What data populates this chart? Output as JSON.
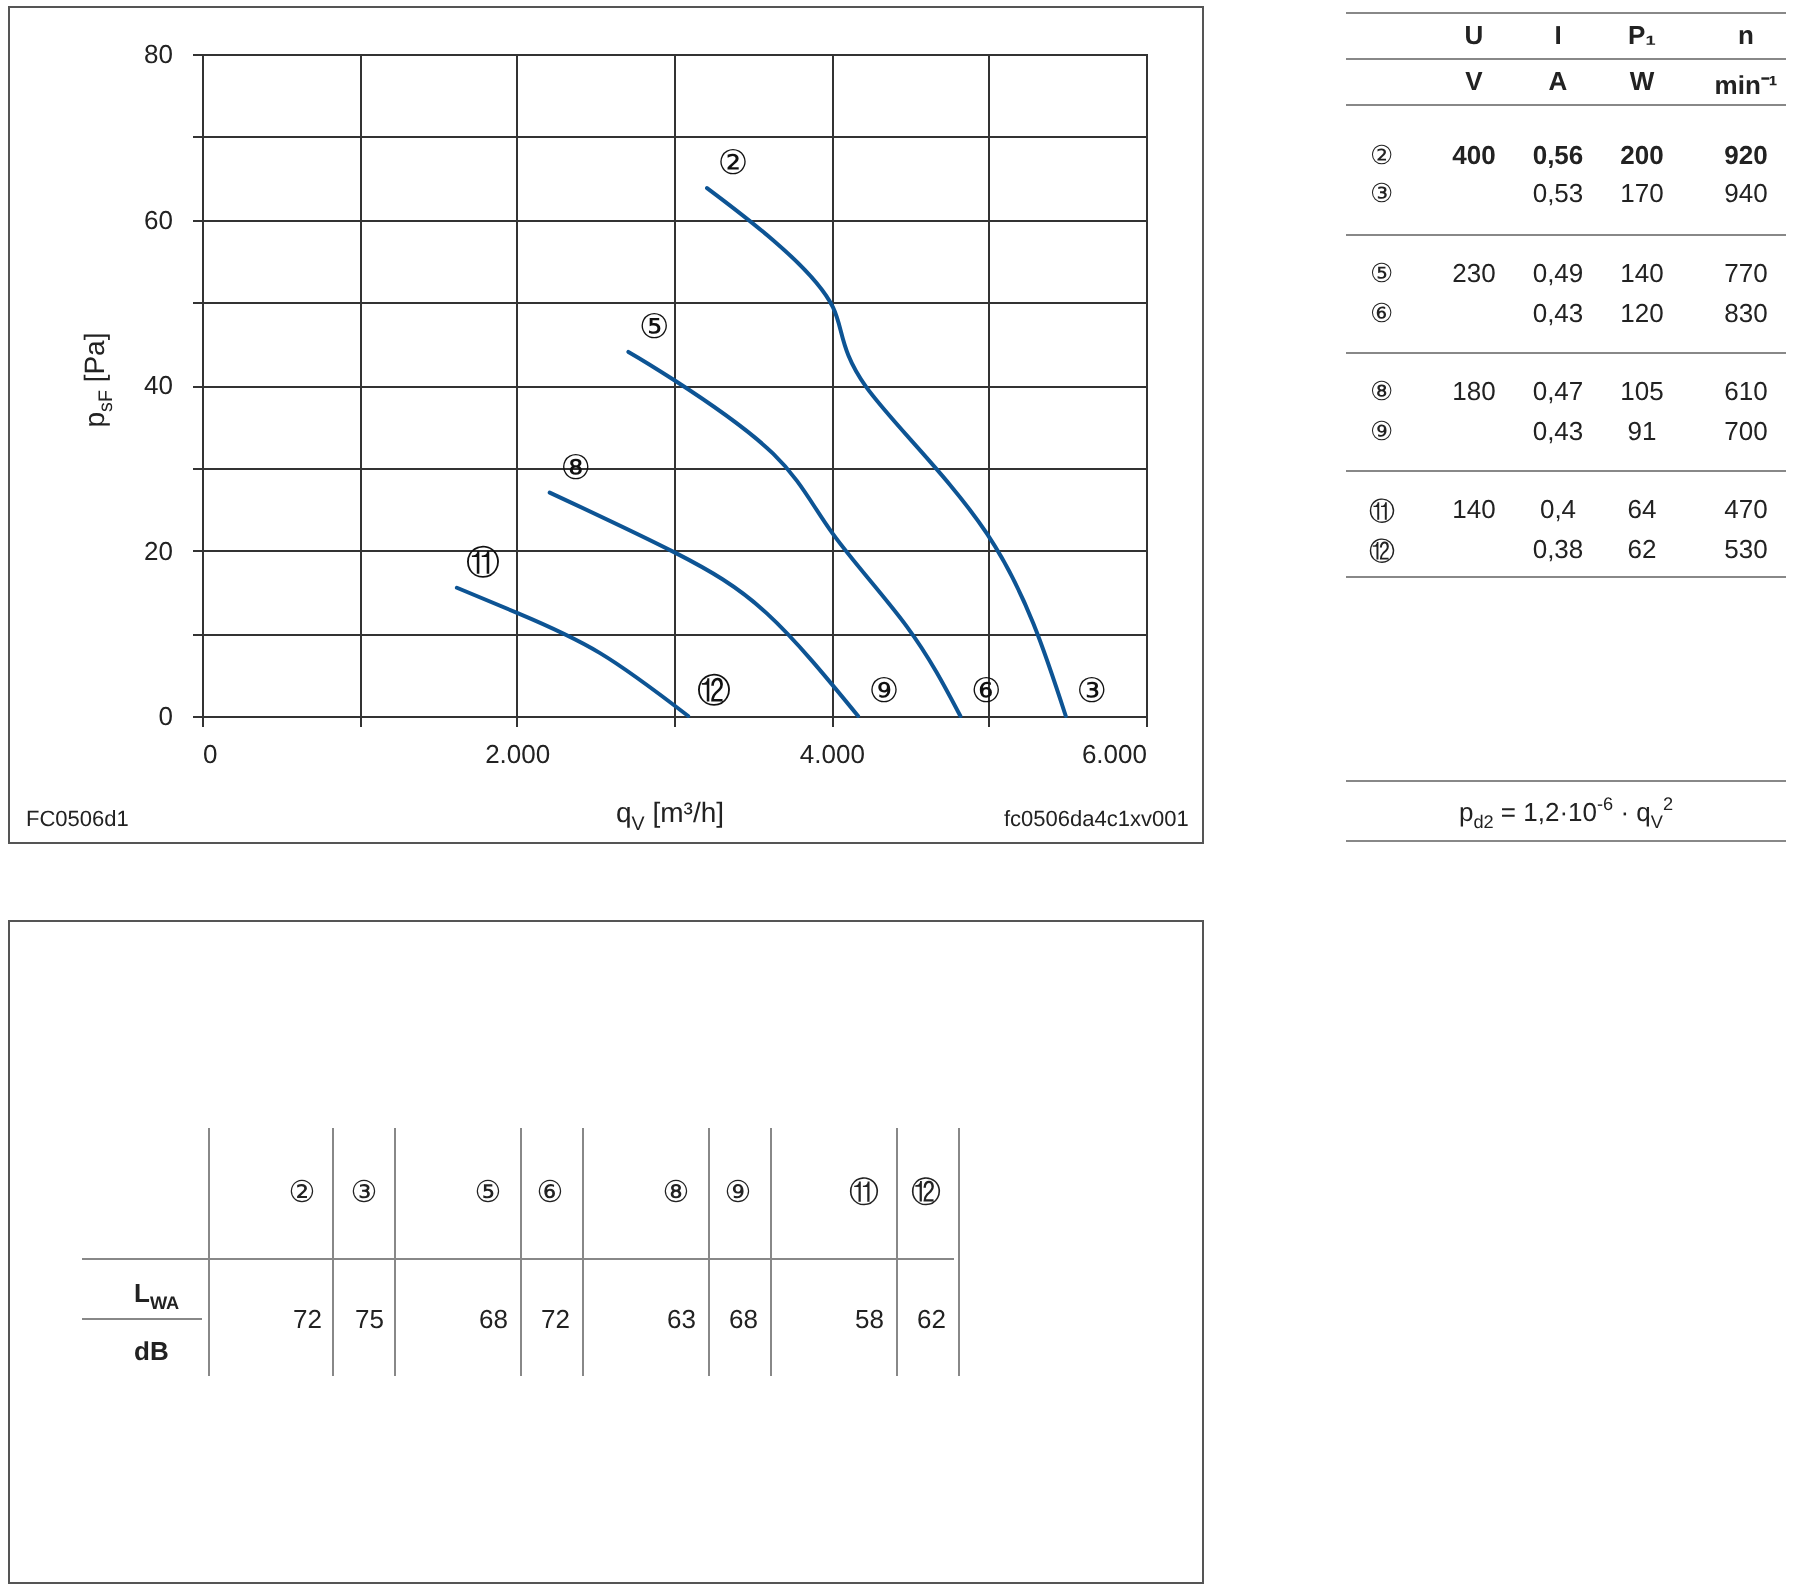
{
  "chart_data": [
    {
      "type": "line",
      "xlabel": "q$_{V}$ [m³/h]",
      "ylabel": "p$_{sF}$ [Pa]",
      "xlim": [
        0,
        6000
      ],
      "ylim": [
        0,
        80
      ],
      "xticks": [
        0,
        {
          "value": 1000,
          "label": null
        },
        {
          "value": 2000,
          "label": "2.000"
        },
        {
          "value": 3000,
          "label": null
        },
        {
          "value": 4000,
          "label": "4.000"
        },
        {
          "value": 5000,
          "label": null
        },
        {
          "value": 6000,
          "label": "6.000"
        }
      ],
      "yticks": [
        0,
        {
          "value": 10,
          "label": null
        },
        20,
        {
          "value": 30,
          "label": null
        },
        40,
        {
          "value": 50,
          "label": null
        },
        60,
        {
          "value": 70,
          "label": null
        },
        80
      ],
      "grid": true,
      "series": [
        {
          "color": "#0d5494",
          "x": [
            3210,
            3630,
            4010,
            4220,
            4990,
            5490
          ],
          "values": [
            63.8,
            57.5,
            49.4,
            39.8,
            22,
            0
          ]
        },
        {
          "color": "#0d5494",
          "x": [
            2710,
            3000,
            3630,
            4010,
            4480,
            4820
          ],
          "values": [
            44,
            40.6,
            31.7,
            22,
            10.8,
            0
          ]
        },
        {
          "color": "#0d5494",
          "x": [
            2210,
            3000,
            3590,
            4170
          ],
          "values": [
            27,
            19.8,
            12.4,
            0
          ]
        },
        {
          "color": "#0d5494",
          "x": [
            1620,
            2010,
            2530,
            3090
          ],
          "values": [
            15.5,
            12.4,
            7.6,
            0
          ]
        }
      ],
      "annotations": [
        {
          "text": "②",
          "x": 3210,
          "y": 63.8
        },
        {
          "text": "③",
          "x": 5490,
          "y": 0
        },
        {
          "text": "⑤",
          "x": 2710,
          "y": 44
        },
        {
          "text": "⑥",
          "x": 4820,
          "y": 0
        },
        {
          "text": "⑧",
          "x": 2210,
          "y": 27
        },
        {
          "text": "⑨",
          "x": 4170,
          "y": 0
        },
        {
          "text": "⑪",
          "x": 1620,
          "y": 15.5
        },
        {
          "text": "⑫",
          "x": 3090,
          "y": 0
        },
        "FC0506d1",
        "fc0506da4c1xv001"
      ]
    },
    {
      "type": "other",
      "annotations": [
        "U",
        "I",
        "P₁",
        "n",
        "V",
        "A",
        "W",
        "min⁻¹",
        "②",
        "400",
        "0,56",
        "200",
        "920",
        "③",
        "0,53",
        "170",
        "940",
        "⑤",
        "230",
        "0,49",
        "140",
        "770",
        "⑥",
        "0,43",
        "120",
        "830",
        "⑧",
        "180",
        "0,47",
        "105",
        "610",
        "⑨",
        "0,43",
        "91",
        "700",
        "⑪",
        "140",
        "0,4",
        "64",
        "470",
        "⑫",
        "0,38",
        "62",
        "530",
        "p$_{d2}$ = 1,2·10$^{-6}$ · q$_{V}$$^{2}$"
      ]
    },
    {
      "type": "other",
      "annotations": [
        "②",
        "③",
        "⑤",
        "⑥",
        "⑧",
        "⑨",
        "⑪",
        "⑫",
        "L$_{WA}$",
        "dB",
        "72",
        "75",
        "68",
        "72",
        "63",
        "68",
        "58",
        "62"
      ]
    }
  ]
}
